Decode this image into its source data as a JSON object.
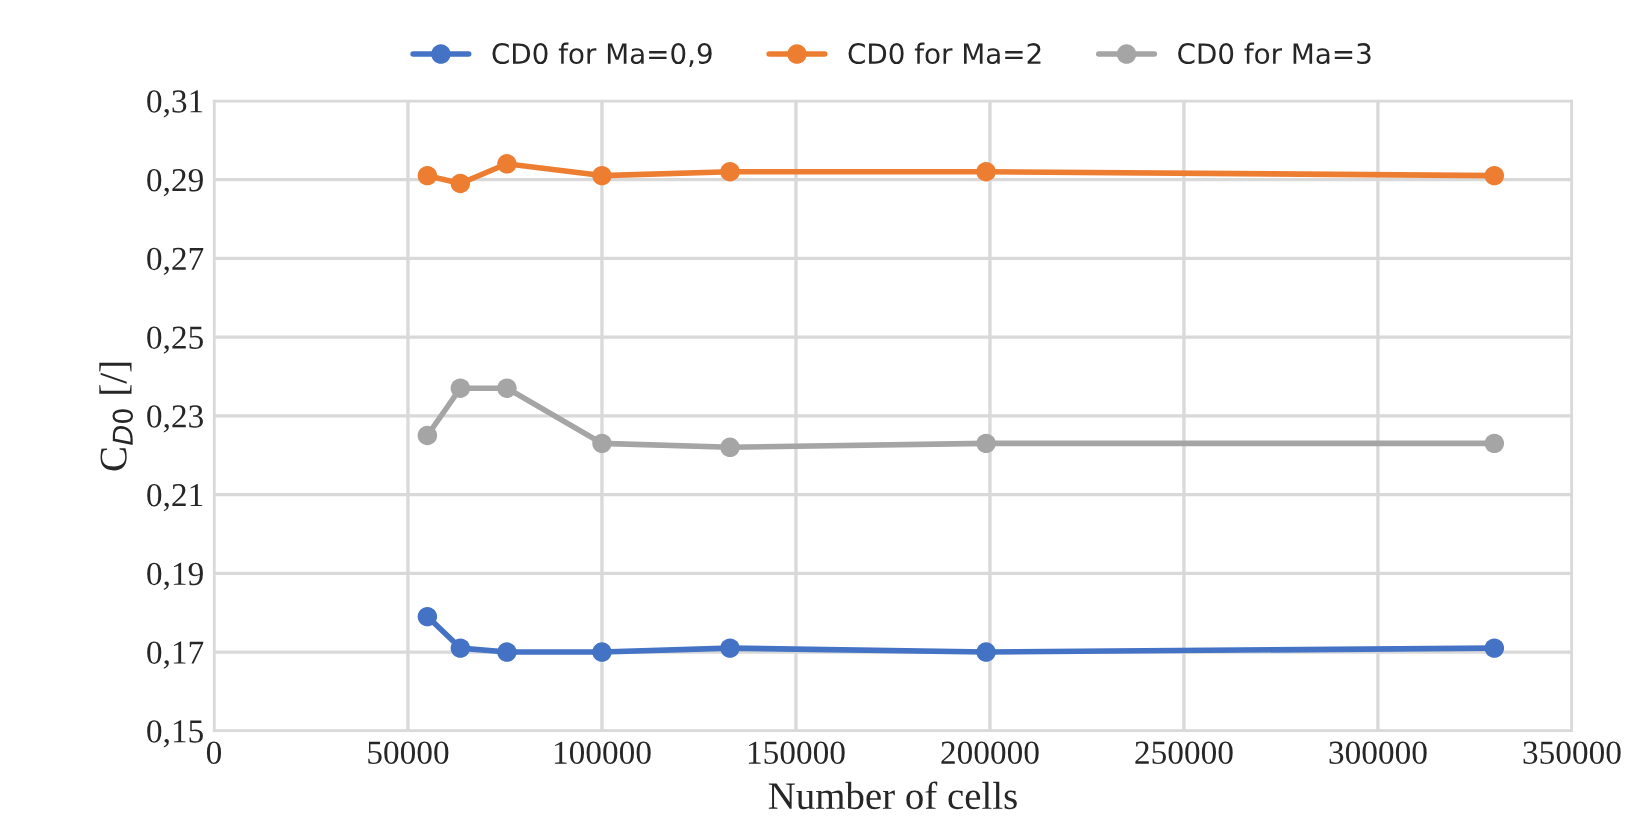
{
  "chart_data": {
    "type": "line",
    "xlabel": "Number of cells",
    "ylabel": "C$_{D0}$ [/]",
    "x": [
      55000,
      63500,
      75500,
      100000,
      133000,
      199000,
      330000
    ],
    "series": [
      {
        "name": "CD0 for Ma=0,9",
        "color": "#4472c4",
        "values": [
          0.179,
          0.171,
          0.17,
          0.17,
          0.171,
          0.17,
          0.171
        ]
      },
      {
        "name": "CD0 for Ma=2",
        "color": "#ed7d31",
        "values": [
          0.291,
          0.289,
          0.294,
          0.291,
          0.292,
          0.292,
          0.291
        ]
      },
      {
        "name": "CD0 for Ma=3",
        "color": "#a5a5a5",
        "values": [
          0.225,
          0.237,
          0.237,
          0.223,
          0.222,
          0.223,
          0.223
        ]
      }
    ],
    "xlim": [
      0,
      350000
    ],
    "xticks": [
      0,
      50000,
      100000,
      150000,
      200000,
      250000,
      300000,
      350000
    ],
    "ylim": [
      0.15,
      0.31
    ],
    "yticks": [
      {
        "value": 0.15,
        "label": "0,15"
      },
      {
        "value": 0.17,
        "label": "0,17"
      },
      {
        "value": 0.19,
        "label": "0,19"
      },
      {
        "value": 0.21,
        "label": "0,21"
      },
      {
        "value": 0.23,
        "label": "0,23"
      },
      {
        "value": 0.25,
        "label": "0,25"
      },
      {
        "value": 0.27,
        "label": "0,27"
      },
      {
        "value": 0.29,
        "label": "0,29"
      },
      {
        "value": 0.31,
        "label": "0,31"
      }
    ],
    "grid": true,
    "legend": "top",
    "marker": "circle",
    "line_style": "solid"
  }
}
